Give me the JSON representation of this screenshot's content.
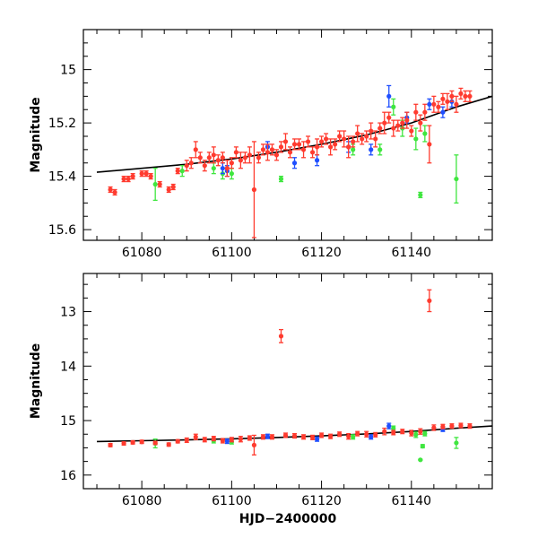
{
  "colors": {
    "red": "#ff3b2f",
    "blue": "#1f4fff",
    "green": "#3fe63f",
    "model": "#000000"
  },
  "chart_data": [
    {
      "type": "scatter",
      "title": "",
      "xlabel": "",
      "ylabel": "Magnitude",
      "xlim": [
        61067,
        61158
      ],
      "ylim": [
        14.85,
        15.64
      ],
      "y_inverted": true,
      "xticks": [
        61080,
        61100,
        61120,
        61140
      ],
      "xtick_labels": [
        "61080",
        "61100",
        "61120",
        "61140"
      ],
      "yticks": [
        15,
        15.2,
        15.4,
        15.6
      ],
      "ytick_labels": [
        "15",
        "15.2",
        "15.4",
        "15.6"
      ],
      "model": {
        "x": [
          61070,
          61080,
          61090,
          61100,
          61110,
          61120,
          61130,
          61140,
          61150,
          61158
        ],
        "y": [
          15.385,
          15.37,
          15.355,
          15.335,
          15.31,
          15.28,
          15.245,
          15.2,
          15.14,
          15.1
        ]
      },
      "series": [
        {
          "name": "red",
          "x": [
            61073,
            61074,
            61076,
            61077,
            61078,
            61080,
            61081,
            61082,
            61084,
            61086,
            61087,
            61088,
            61090,
            61091,
            61092,
            61093,
            61094,
            61095,
            61096,
            61097,
            61098,
            61099,
            61100,
            61101,
            61102,
            61103,
            61104,
            61105,
            61106,
            61107,
            61108,
            61109,
            61110,
            61111,
            61112,
            61113,
            61114,
            61115,
            61116,
            61117,
            61118,
            61119,
            61120,
            61121,
            61122,
            61123,
            61124,
            61125,
            61126,
            61127,
            61128,
            61129,
            61130,
            61131,
            61132,
            61133,
            61134,
            61135,
            61136,
            61137,
            61138,
            61139,
            61140,
            61141,
            61142,
            61143,
            61144,
            61145,
            61146,
            61147,
            61148,
            61149,
            61150,
            61151,
            61152,
            61153
          ],
          "y": [
            15.45,
            15.46,
            15.41,
            15.41,
            15.4,
            15.39,
            15.39,
            15.4,
            15.43,
            15.45,
            15.44,
            15.38,
            15.36,
            15.35,
            15.3,
            15.33,
            15.36,
            15.33,
            15.32,
            15.34,
            15.33,
            15.37,
            15.35,
            15.31,
            15.34,
            15.33,
            15.32,
            15.45,
            15.33,
            15.3,
            15.31,
            15.3,
            15.32,
            15.29,
            15.27,
            15.31,
            15.28,
            15.28,
            15.3,
            15.27,
            15.31,
            15.29,
            15.27,
            15.26,
            15.29,
            15.28,
            15.25,
            15.26,
            15.29,
            15.27,
            15.24,
            15.26,
            15.25,
            15.23,
            15.26,
            15.22,
            15.2,
            15.18,
            15.22,
            15.21,
            15.2,
            15.19,
            15.23,
            15.16,
            15.2,
            15.16,
            15.28,
            15.13,
            15.14,
            15.11,
            15.12,
            15.1,
            15.13,
            15.09,
            15.1,
            15.1
          ],
          "err": [
            0.01,
            0.01,
            0.01,
            0.01,
            0.01,
            0.01,
            0.01,
            0.01,
            0.01,
            0.01,
            0.01,
            0.01,
            0.02,
            0.02,
            0.03,
            0.02,
            0.02,
            0.02,
            0.03,
            0.02,
            0.02,
            0.03,
            0.02,
            0.02,
            0.03,
            0.02,
            0.03,
            0.18,
            0.02,
            0.02,
            0.03,
            0.02,
            0.02,
            0.02,
            0.03,
            0.02,
            0.02,
            0.02,
            0.03,
            0.02,
            0.02,
            0.03,
            0.02,
            0.02,
            0.03,
            0.02,
            0.02,
            0.03,
            0.04,
            0.02,
            0.03,
            0.02,
            0.02,
            0.03,
            0.03,
            0.02,
            0.04,
            0.02,
            0.03,
            0.02,
            0.02,
            0.03,
            0.02,
            0.03,
            0.03,
            0.03,
            0.07,
            0.03,
            0.02,
            0.02,
            0.03,
            0.02,
            0.03,
            0.02,
            0.02,
            0.02
          ]
        },
        {
          "name": "blue",
          "x": [
            61098,
            61099,
            61108,
            61114,
            61119,
            61126,
            61131,
            61135,
            61139,
            61144,
            61147,
            61149
          ],
          "y": [
            15.37,
            15.38,
            15.29,
            15.35,
            15.34,
            15.29,
            15.3,
            15.1,
            15.18,
            15.13,
            15.16,
            15.12
          ],
          "err": [
            0.02,
            0.02,
            0.02,
            0.02,
            0.02,
            0.02,
            0.02,
            0.04,
            0.02,
            0.02,
            0.02,
            0.02
          ]
        },
        {
          "name": "green",
          "x": [
            61083,
            61089,
            61096,
            61098,
            61100,
            61111,
            61127,
            61133,
            61136,
            61138,
            61141,
            61142,
            61143,
            61150
          ],
          "y": [
            15.43,
            15.38,
            15.37,
            15.39,
            15.39,
            15.41,
            15.3,
            15.3,
            15.14,
            15.22,
            15.26,
            15.47,
            15.24,
            15.41
          ],
          "err": [
            0.06,
            0.02,
            0.02,
            0.02,
            0.02,
            0.01,
            0.02,
            0.02,
            0.03,
            0.03,
            0.04,
            0.01,
            0.03,
            0.09
          ]
        }
      ]
    },
    {
      "type": "scatter",
      "title": "",
      "xlabel": "HJD−2400000",
      "ylabel": "Magnitude",
      "xlim": [
        61067,
        61158
      ],
      "ylim": [
        12.3,
        16.25
      ],
      "y_inverted": true,
      "xticks": [
        61080,
        61100,
        61120,
        61140
      ],
      "xtick_labels": [
        "61080",
        "61100",
        "61120",
        "61140"
      ],
      "yticks": [
        13,
        14,
        15,
        16
      ],
      "ytick_labels": [
        "13",
        "14",
        "15",
        "16"
      ],
      "model": {
        "x": [
          61070,
          61080,
          61090,
          61100,
          61110,
          61120,
          61130,
          61140,
          61150,
          61158
        ],
        "y": [
          15.385,
          15.37,
          15.355,
          15.335,
          15.31,
          15.28,
          15.245,
          15.2,
          15.14,
          15.1
        ]
      },
      "series": [
        {
          "name": "red",
          "x": [
            61073,
            61076,
            61078,
            61080,
            61083,
            61086,
            61088,
            61090,
            61092,
            61094,
            61096,
            61098,
            61100,
            61102,
            61104,
            61105,
            61107,
            61109,
            61111,
            61112,
            61114,
            61116,
            61118,
            61120,
            61122,
            61124,
            61126,
            61128,
            61130,
            61132,
            61134,
            61136,
            61138,
            61140,
            61142,
            61144,
            61145,
            61147,
            61149,
            61151,
            61153
          ],
          "y": [
            15.45,
            15.42,
            15.4,
            15.39,
            15.41,
            15.44,
            15.38,
            15.36,
            15.3,
            15.35,
            15.33,
            15.37,
            15.35,
            15.34,
            15.32,
            15.45,
            15.3,
            15.3,
            13.45,
            15.27,
            15.28,
            15.3,
            15.31,
            15.27,
            15.29,
            15.25,
            15.29,
            15.24,
            15.25,
            15.26,
            15.2,
            15.22,
            15.2,
            15.23,
            15.2,
            12.8,
            15.13,
            15.11,
            15.1,
            15.09,
            15.1
          ],
          "err": [
            0.03,
            0.03,
            0.03,
            0.03,
            0.03,
            0.03,
            0.03,
            0.04,
            0.05,
            0.04,
            0.04,
            0.04,
            0.04,
            0.05,
            0.04,
            0.18,
            0.04,
            0.04,
            0.12,
            0.04,
            0.04,
            0.04,
            0.04,
            0.04,
            0.04,
            0.04,
            0.05,
            0.04,
            0.05,
            0.04,
            0.06,
            0.04,
            0.04,
            0.05,
            0.05,
            0.2,
            0.05,
            0.04,
            0.04,
            0.04,
            0.04
          ]
        },
        {
          "name": "blue",
          "x": [
            61099,
            61108,
            61119,
            61131,
            61135,
            61147
          ],
          "y": [
            15.38,
            15.29,
            15.34,
            15.3,
            15.1,
            15.16
          ],
          "err": [
            0.04,
            0.04,
            0.04,
            0.04,
            0.05,
            0.04
          ]
        },
        {
          "name": "green",
          "x": [
            61083,
            61096,
            61100,
            61127,
            61136,
            61141,
            61142,
            61142.5,
            61143,
            61150
          ],
          "y": [
            15.42,
            15.37,
            15.39,
            15.3,
            15.14,
            15.26,
            15.72,
            15.47,
            15.24,
            15.41
          ],
          "err": [
            0.08,
            0.04,
            0.04,
            0.04,
            0.04,
            0.05,
            0.01,
            0.03,
            0.04,
            0.1
          ]
        }
      ]
    }
  ]
}
